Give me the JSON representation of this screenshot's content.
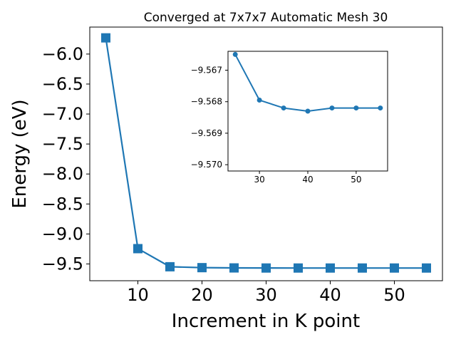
{
  "chart_data": [
    {
      "type": "line",
      "title": "Converged at 7x7x7 Automatic Mesh 30",
      "xlabel": "Increment in K point",
      "ylabel": "Energy (eV)",
      "xlim": [
        2.5,
        57.5
      ],
      "ylim": [
        -9.78,
        -5.55
      ],
      "xticks": [
        10,
        20,
        30,
        40,
        50
      ],
      "xtick_labels": [
        "10",
        "20",
        "30",
        "40",
        "50"
      ],
      "yticks": [
        -6.0,
        -6.5,
        -7.0,
        -7.5,
        -8.0,
        -8.5,
        -9.0,
        -9.5
      ],
      "ytick_labels": [
        "−6.0",
        "−6.5",
        "−7.0",
        "−7.5",
        "−8.0",
        "−8.5",
        "−9.0",
        "−9.5"
      ],
      "marker": "square",
      "color": "#1f77b4",
      "series": [
        {
          "x": [
            5,
            10,
            15,
            20,
            25,
            30,
            35,
            40,
            45,
            50,
            55
          ],
          "y": [
            -5.73,
            -9.245,
            -9.547,
            -9.562,
            -9.5665,
            -9.568,
            -9.5682,
            -9.5683,
            -9.5682,
            -9.5682,
            -9.5682
          ]
        }
      ]
    },
    {
      "type": "line",
      "title": "",
      "inset": true,
      "xlim": [
        23.5,
        56.5
      ],
      "ylim": [
        -9.5702,
        -9.5664
      ],
      "xticks": [
        30,
        40,
        50
      ],
      "xtick_labels": [
        "30",
        "40",
        "50"
      ],
      "yticks": [
        -9.57,
        -9.569,
        -9.568,
        -9.567
      ],
      "ytick_labels": [
        "−9.570",
        "−9.569",
        "−9.568",
        "−9.567"
      ],
      "marker": "circle",
      "color": "#1f77b4",
      "series": [
        {
          "x": [
            25,
            30,
            35,
            40,
            45,
            50,
            55
          ],
          "y": [
            -9.5665,
            -9.56795,
            -9.5682,
            -9.5683,
            -9.5682,
            -9.5682,
            -9.5682
          ]
        }
      ]
    }
  ]
}
